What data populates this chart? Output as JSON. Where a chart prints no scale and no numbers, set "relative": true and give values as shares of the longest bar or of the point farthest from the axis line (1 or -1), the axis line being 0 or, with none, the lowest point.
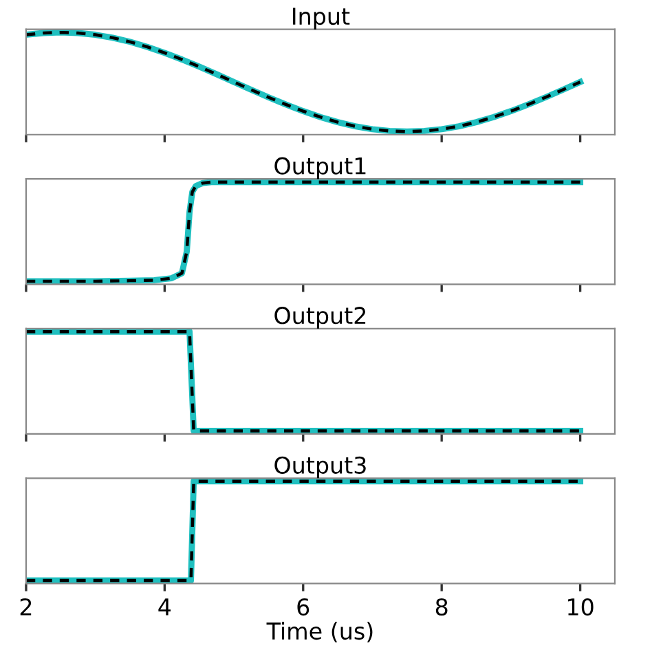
{
  "chart_data": [
    {
      "type": "line",
      "title": "Input",
      "relative": true,
      "x": [
        2,
        2.25,
        2.5,
        2.75,
        3,
        3.25,
        3.5,
        3.75,
        4,
        4.25,
        4.5,
        4.75,
        5,
        5.25,
        5.5,
        5.75,
        6,
        6.25,
        6.5,
        6.75,
        7,
        7.25,
        7.5,
        7.75,
        8,
        8.25,
        8.5,
        8.75,
        9,
        9.25,
        9.5,
        9.75,
        10
      ],
      "xlim": [
        2,
        10.5
      ],
      "xticks": [
        2,
        4,
        6,
        8,
        10
      ],
      "tick_labels": false,
      "series": [
        {
          "color": "#20c0c0",
          "line_style": "solid",
          "values": [
            0.977,
            0.994,
            1,
            0.994,
            0.977,
            0.948,
            0.908,
            0.858,
            0.8,
            0.735,
            0.665,
            0.591,
            0.515,
            0.439,
            0.365,
            0.295,
            0.23,
            0.172,
            0.122,
            0.082,
            0.053,
            0.036,
            0.03,
            0.036,
            0.053,
            0.082,
            0.122,
            0.172,
            0.23,
            0.295,
            0.365,
            0.439,
            0.515
          ]
        },
        {
          "color": "#000000",
          "line_style": "dashed",
          "values": [
            0.977,
            0.994,
            1,
            0.994,
            0.977,
            0.948,
            0.908,
            0.858,
            0.8,
            0.735,
            0.665,
            0.591,
            0.515,
            0.439,
            0.365,
            0.295,
            0.23,
            0.172,
            0.122,
            0.082,
            0.053,
            0.036,
            0.03,
            0.036,
            0.053,
            0.082,
            0.122,
            0.172,
            0.23,
            0.295,
            0.365,
            0.439,
            0.515
          ]
        }
      ]
    },
    {
      "type": "line",
      "title": "Output1",
      "relative": true,
      "x": [
        2,
        3,
        3.5,
        3.85,
        4.1,
        4.25,
        4.32,
        4.36,
        4.4,
        4.45,
        4.55,
        4.7,
        5,
        10
      ],
      "xlim": [
        2,
        10.5
      ],
      "xticks": [
        2,
        4,
        6,
        8,
        10
      ],
      "tick_labels": false,
      "series": [
        {
          "color": "#20c0c0",
          "line_style": "solid",
          "values": [
            0.03,
            0.03,
            0.035,
            0.04,
            0.059,
            0.108,
            0.321,
            0.709,
            0.903,
            0.961,
            0.99,
            1,
            1,
            1
          ]
        },
        {
          "color": "#000000",
          "line_style": "dashed",
          "values": [
            0.03,
            0.03,
            0.035,
            0.04,
            0.059,
            0.108,
            0.321,
            0.709,
            0.903,
            0.961,
            0.99,
            1,
            1,
            1
          ]
        }
      ]
    },
    {
      "type": "line",
      "title": "Output2",
      "relative": true,
      "x": [
        2,
        4.36,
        4.42,
        10
      ],
      "xlim": [
        2,
        10.5
      ],
      "xticks": [
        2,
        4,
        6,
        8,
        10
      ],
      "tick_labels": false,
      "series": [
        {
          "color": "#20c0c0",
          "line_style": "solid",
          "values": [
            1,
            1,
            0.03,
            0.03
          ]
        },
        {
          "color": "#000000",
          "line_style": "dashed",
          "values": [
            1,
            1,
            0.03,
            0.03
          ]
        }
      ]
    },
    {
      "type": "line",
      "title": "Output3",
      "relative": true,
      "x": [
        2,
        4.38,
        4.42,
        10
      ],
      "xlim": [
        2,
        10.5
      ],
      "xticks": [
        2,
        4,
        6,
        8,
        10
      ],
      "tick_labels": "x",
      "xlabel": "Time (us)",
      "series": [
        {
          "color": "#20c0c0",
          "line_style": "solid",
          "values": [
            0.03,
            0.03,
            1,
            1
          ]
        },
        {
          "color": "#000000",
          "line_style": "dashed",
          "values": [
            0.03,
            0.03,
            1,
            1
          ]
        }
      ]
    }
  ]
}
